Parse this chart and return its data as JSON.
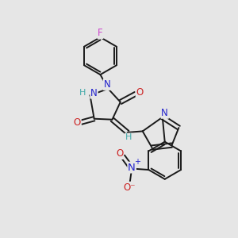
{
  "bg_color": "#e6e6e6",
  "bond_color": "#1a1a1a",
  "bond_width": 1.4,
  "atom_colors": {
    "N": "#2222cc",
    "O": "#cc2222",
    "F": "#cc44cc",
    "H": "#44aaaa",
    "C": "#1a1a1a"
  },
  "font_size": 8.5
}
